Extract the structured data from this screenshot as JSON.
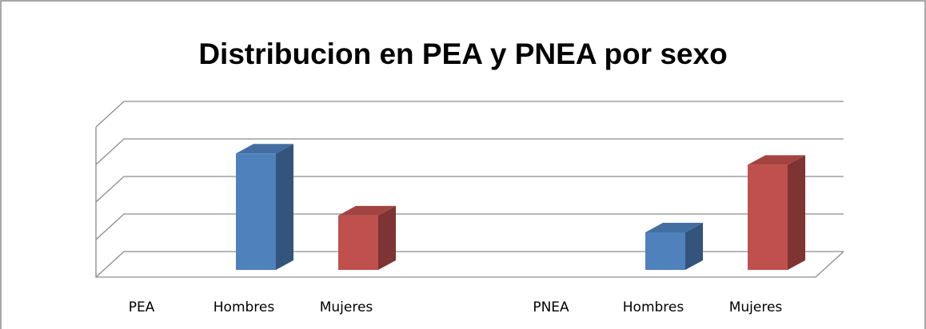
{
  "chart_data": {
    "type": "bar3d",
    "title": "Distribucion en PEA y PNEA por sexo",
    "categories": [
      "PEA",
      "Hombres",
      "Mujeres",
      null,
      "PNEA",
      "Hombres",
      "Mujeres"
    ],
    "values": [
      null,
      3.1,
      1.45,
      null,
      null,
      1.0,
      2.8
    ],
    "colors": [
      null,
      "#4f81bd",
      "#c0504d",
      null,
      null,
      "#4f81bd",
      "#c0504d"
    ],
    "ylim": [
      0,
      4
    ],
    "yticks": [
      0,
      1,
      2,
      3,
      4
    ],
    "grid": true
  }
}
